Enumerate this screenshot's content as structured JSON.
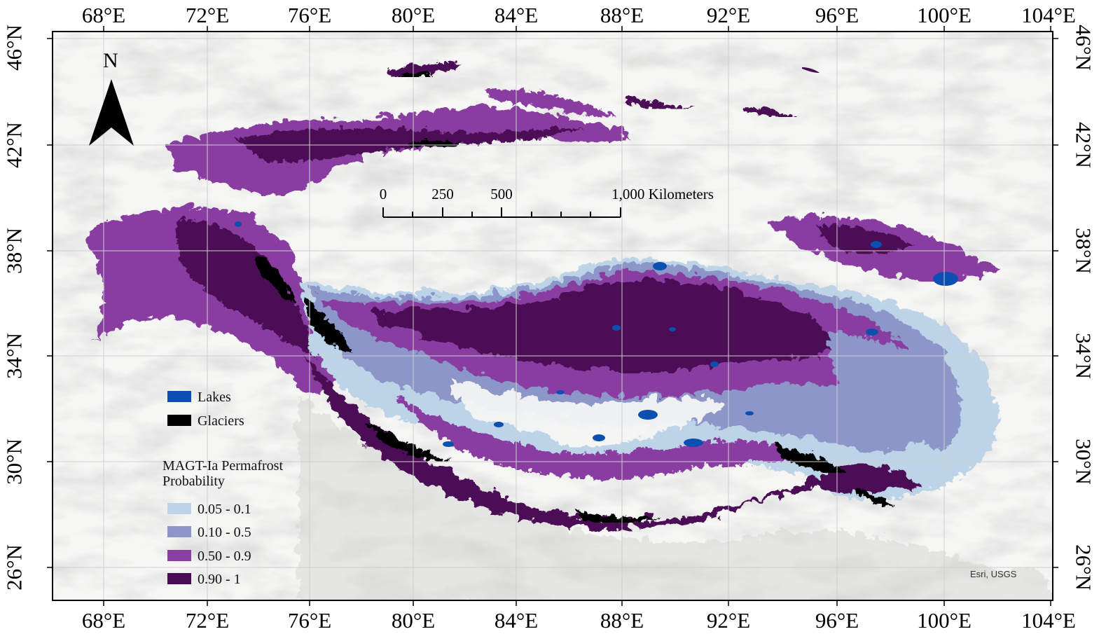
{
  "map": {
    "lon_labels": [
      "68°E",
      "72°E",
      "76°E",
      "80°E",
      "84°E",
      "88°E",
      "92°E",
      "96°E",
      "100°E",
      "104°E"
    ],
    "lat_labels": [
      "46°N",
      "42°N",
      "38°N",
      "34°N",
      "30°N",
      "26°N"
    ],
    "north_arrow": "N",
    "credit": "Esri, USGS"
  },
  "scale_bar": {
    "ticks": [
      "0",
      "250",
      "500",
      "1,000 Kilometers"
    ]
  },
  "legend": {
    "lakes": {
      "label": "Lakes",
      "color": "#0b4fb0"
    },
    "glaciers": {
      "label": "Glaciers",
      "color": "#000000"
    },
    "title_line1": "MAGT-Ia Permafrost",
    "title_line2": "Probability",
    "classes": [
      {
        "label": "0.05 - 0.1",
        "color": "#bcd3e8"
      },
      {
        "label": "0.10 - 0.5",
        "color": "#8d96c8"
      },
      {
        "label": "0.50 - 0.9",
        "color": "#8a3ea1"
      },
      {
        "label": "0.90 - 1",
        "color": "#4b0a55"
      }
    ]
  }
}
